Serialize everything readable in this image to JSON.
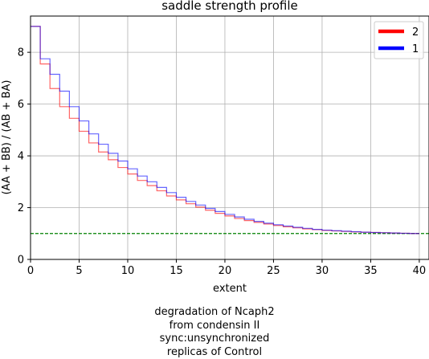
{
  "chart_data": {
    "type": "line",
    "step": true,
    "title": "saddle strength profile",
    "xlabel": "extent",
    "ylabel": "(AA + BB) / (AB + BA)",
    "xlim": [
      0,
      41
    ],
    "ylim": [
      0,
      9.4
    ],
    "xticks": [
      0,
      5,
      10,
      15,
      20,
      25,
      30,
      35,
      40
    ],
    "yticks": [
      0,
      2,
      4,
      6,
      8
    ],
    "grid": true,
    "legend_position": "top-right",
    "reference_line": {
      "y": 1.0,
      "color": "#008000",
      "style": "dashed"
    },
    "series": [
      {
        "name": "2",
        "color": "#ff0000",
        "x": [
          0,
          1,
          2,
          3,
          4,
          5,
          6,
          7,
          8,
          9,
          10,
          11,
          12,
          13,
          14,
          15,
          16,
          17,
          18,
          19,
          20,
          21,
          22,
          23,
          24,
          25,
          26,
          27,
          28,
          29,
          30,
          31,
          32,
          33,
          34,
          35,
          36,
          37,
          38,
          39
        ],
        "values": [
          9.0,
          7.55,
          6.6,
          5.9,
          5.45,
          4.95,
          4.5,
          4.15,
          3.85,
          3.55,
          3.3,
          3.05,
          2.85,
          2.65,
          2.45,
          2.3,
          2.15,
          2.02,
          1.9,
          1.78,
          1.68,
          1.58,
          1.5,
          1.43,
          1.37,
          1.31,
          1.26,
          1.22,
          1.18,
          1.15,
          1.12,
          1.1,
          1.08,
          1.06,
          1.05,
          1.04,
          1.03,
          1.02,
          1.01,
          1.0
        ]
      },
      {
        "name": "1",
        "color": "#0000ff",
        "x": [
          0,
          1,
          2,
          3,
          4,
          5,
          6,
          7,
          8,
          9,
          10,
          11,
          12,
          13,
          14,
          15,
          16,
          17,
          18,
          19,
          20,
          21,
          22,
          23,
          24,
          25,
          26,
          27,
          28,
          29,
          30,
          31,
          32,
          33,
          34,
          35,
          36,
          37,
          38,
          39
        ],
        "values": [
          9.0,
          7.75,
          7.15,
          6.5,
          5.9,
          5.35,
          4.85,
          4.45,
          4.1,
          3.8,
          3.5,
          3.22,
          3.0,
          2.78,
          2.58,
          2.4,
          2.24,
          2.1,
          1.97,
          1.85,
          1.74,
          1.64,
          1.55,
          1.47,
          1.4,
          1.34,
          1.29,
          1.24,
          1.2,
          1.16,
          1.13,
          1.11,
          1.09,
          1.07,
          1.05,
          1.04,
          1.03,
          1.02,
          1.01,
          1.0
        ]
      }
    ]
  },
  "caption": {
    "line1": "degradation of Ncaph2",
    "line2": "from condensin II",
    "line3": "sync:unsynchronized",
    "line4": "replicas of Control"
  }
}
